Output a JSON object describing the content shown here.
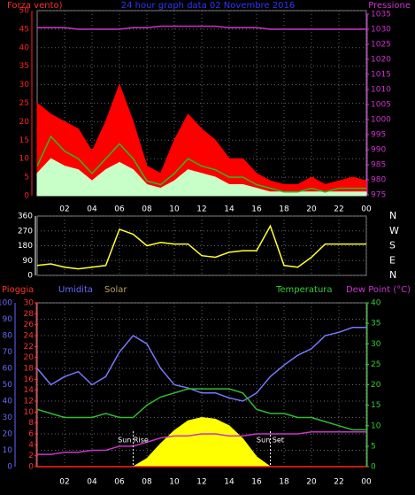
{
  "chart_data": [
    {
      "type": "line",
      "title": "24 hour graph data  02 Novembre 2016",
      "left_label": "Forza vento)",
      "right_label": "Pressione",
      "x": [
        0,
        1,
        2,
        3,
        4,
        5,
        6,
        7,
        8,
        9,
        10,
        11,
        12,
        13,
        14,
        15,
        16,
        17,
        18,
        19,
        20,
        21,
        22,
        23,
        24
      ],
      "xlim": [
        0,
        24
      ],
      "xticks": [
        {
          "value": 2,
          "label": "02"
        },
        {
          "value": 4,
          "label": "04"
        },
        {
          "value": 6,
          "label": "06"
        },
        {
          "value": 8,
          "label": "08"
        },
        {
          "value": 10,
          "label": "10"
        },
        {
          "value": 12,
          "label": "12"
        },
        14,
        16,
        18,
        20,
        22,
        {
          "value": 24,
          "label": "00"
        }
      ],
      "ylim": [
        0,
        50
      ],
      "yticks": [
        0,
        5,
        10,
        15,
        20,
        25,
        30,
        35,
        40,
        45,
        50
      ],
      "ytick_color": "#ff2020",
      "y2lim": [
        975,
        1035
      ],
      "y2ticks": [
        975,
        980,
        985,
        990,
        995,
        1000,
        1005,
        1010,
        1015,
        1020,
        1025,
        1030,
        1035
      ],
      "y2tick_color": "#cc33cc",
      "grid": true,
      "series": [
        {
          "color": "#ff0000",
          "style": "area",
          "values": [
            25,
            22,
            20,
            18,
            12,
            20,
            30,
            20,
            8,
            6,
            15,
            22,
            18,
            15,
            10,
            10,
            6,
            4,
            3,
            3,
            5,
            3,
            4,
            5,
            4
          ]
        },
        {
          "color": "#c8ffc8",
          "style": "area",
          "values": [
            6,
            10,
            8,
            7,
            4,
            7,
            9,
            7,
            3,
            2,
            4,
            7,
            6,
            5,
            3,
            3,
            2,
            1,
            1,
            1,
            1,
            1,
            1,
            1,
            1
          ]
        },
        {
          "color": "#20c020",
          "style": "line",
          "values": [
            8,
            16,
            12,
            10,
            6,
            10,
            14,
            10,
            4,
            3,
            6,
            10,
            8,
            7,
            5,
            5,
            3,
            2,
            1,
            1,
            2,
            1,
            2,
            2,
            2
          ]
        },
        {
          "color": "#cc33cc",
          "style": "line",
          "axis": "y2",
          "values": [
            1030.5,
            1030.5,
            1030.5,
            1030,
            1030,
            1030,
            1030,
            1030.5,
            1030.5,
            1031,
            1031,
            1031,
            1031,
            1031,
            1030.5,
            1030.5,
            1030.5,
            1030,
            1030,
            1030,
            1030,
            1030,
            1030,
            1030,
            1030
          ]
        }
      ]
    },
    {
      "type": "line",
      "x": [
        0,
        1,
        2,
        3,
        4,
        5,
        6,
        7,
        8,
        9,
        10,
        11,
        12,
        13,
        14,
        15,
        16,
        17,
        18,
        19,
        20,
        21,
        22,
        23,
        24
      ],
      "xlim": [
        0,
        24
      ],
      "xticks": [
        2,
        4,
        6,
        8,
        10,
        12,
        14,
        16,
        18,
        20,
        22,
        24
      ],
      "ylim": [
        0,
        360
      ],
      "yticks": [
        0,
        90,
        180,
        270,
        360
      ],
      "ytick_color": "#ffffff",
      "compass_labels": [
        "N",
        "W",
        "S",
        "E",
        "N"
      ],
      "grid": true,
      "series": [
        {
          "color": "#ffff33",
          "style": "line",
          "values": [
            60,
            70,
            50,
            40,
            50,
            60,
            280,
            250,
            180,
            200,
            190,
            190,
            120,
            110,
            140,
            150,
            150,
            300,
            60,
            50,
            110,
            190,
            190,
            190,
            190
          ]
        }
      ]
    },
    {
      "type": "line",
      "rain_label": "Pioggia",
      "humidity_label": "Umidita",
      "solar_label": "Solar",
      "temp_label": "Temperatura",
      "dew_label": "Dew Point (°C)",
      "x": [
        0,
        1,
        2,
        3,
        4,
        5,
        6,
        7,
        8,
        9,
        10,
        11,
        12,
        13,
        14,
        15,
        16,
        17,
        18,
        19,
        20,
        21,
        22,
        23,
        24
      ],
      "xlim": [
        0,
        24
      ],
      "xticks": [
        {
          "value": 2,
          "label": "02"
        },
        {
          "value": 4,
          "label": "04"
        },
        {
          "value": 6,
          "label": "06"
        },
        {
          "value": 8,
          "label": "08"
        },
        {
          "value": 10,
          "label": "10"
        },
        {
          "value": 12,
          "label": "12"
        },
        14,
        16,
        18,
        20,
        22,
        {
          "value": 24,
          "label": "00"
        }
      ],
      "ylim": [
        0,
        100
      ],
      "yticks": [
        0,
        10,
        20,
        30,
        40,
        50,
        60,
        70,
        80,
        90,
        100
      ],
      "ytick_color": "#6666ff",
      "y2lim": [
        0,
        40
      ],
      "y2ticks": [
        0,
        5,
        10,
        15,
        20,
        25,
        30,
        35,
        40
      ],
      "y2tick_color": "#33cc33",
      "y3lim": [
        0,
        30
      ],
      "y3ticks": [
        0,
        2,
        4,
        6,
        8,
        10,
        12,
        14,
        16,
        18,
        20,
        22,
        24,
        26,
        28,
        30
      ],
      "y3tick_color": "#ff3030",
      "grid": true,
      "annotations": [
        {
          "text": "Sun Rise",
          "x": 7
        },
        {
          "text": "Sun Set",
          "x": 17
        }
      ],
      "series": [
        {
          "color": "#ffff00",
          "style": "area",
          "values": [
            0,
            0,
            0,
            0,
            0,
            0,
            0,
            0,
            5,
            14,
            22,
            28,
            30,
            29,
            25,
            17,
            6,
            0,
            0,
            0,
            0,
            0,
            0,
            0,
            0
          ]
        },
        {
          "color": "#ff2020",
          "style": "line",
          "axis": "y3",
          "values": [
            0,
            0,
            0,
            0,
            0,
            0,
            0,
            0,
            0,
            0,
            0,
            0,
            0,
            0,
            0,
            0,
            0,
            0,
            0,
            0,
            0,
            0,
            0,
            0,
            0
          ]
        },
        {
          "color": "#7777ff",
          "style": "line",
          "values": [
            60,
            50,
            55,
            58,
            50,
            55,
            70,
            80,
            75,
            60,
            50,
            48,
            45,
            45,
            42,
            40,
            45,
            55,
            62,
            68,
            72,
            80,
            82,
            85,
            85
          ]
        },
        {
          "color": "#33bb33",
          "style": "line",
          "axis": "y2",
          "values": [
            14,
            13,
            12,
            12,
            12,
            13,
            12,
            12,
            15,
            17,
            18,
            19,
            19,
            19,
            19,
            18,
            14,
            13,
            13,
            12,
            12,
            11,
            10,
            9,
            9
          ]
        },
        {
          "color": "#cc33cc",
          "style": "line",
          "axis": "y2",
          "values": [
            3,
            3,
            3.5,
            3.5,
            4,
            4,
            5,
            5,
            6,
            7,
            7.5,
            7.5,
            8,
            8,
            7.5,
            7.5,
            8,
            8,
            8,
            8,
            8.5,
            8.5,
            8.5,
            8.5,
            8.5
          ]
        }
      ]
    }
  ]
}
